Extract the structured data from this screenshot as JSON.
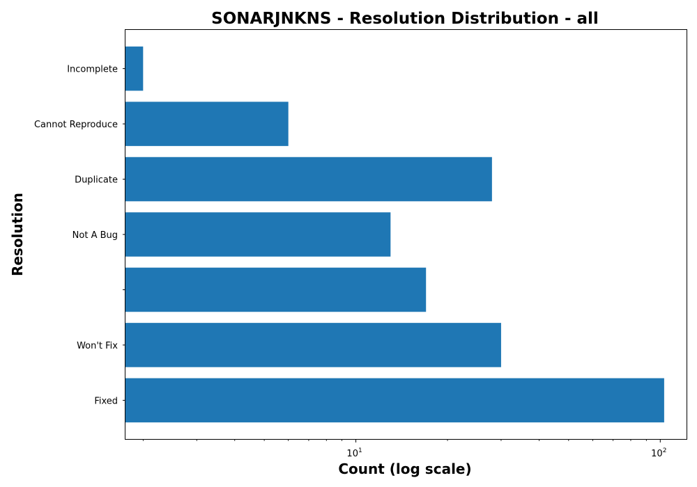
{
  "chart_data": {
    "type": "bar",
    "orientation": "horizontal",
    "title": "SONARJNKNS - Resolution Distribution - all",
    "xlabel": "Count (log scale)",
    "ylabel": "Resolution",
    "x_scale": "log",
    "xlim": [
      1.75,
      122
    ],
    "x_ticks": [
      {
        "value": 10,
        "base": "10",
        "exp": "1"
      },
      {
        "value": 100,
        "base": "10",
        "exp": "2"
      }
    ],
    "categories": [
      "Fixed",
      "Won't Fix",
      "",
      "Not A Bug",
      "Duplicate",
      "Cannot Reproduce",
      "Incomplete"
    ],
    "values": [
      103,
      30,
      17,
      13,
      28,
      6,
      2
    ],
    "bar_color": "#1f77b4",
    "grid": false,
    "legend": "none"
  }
}
